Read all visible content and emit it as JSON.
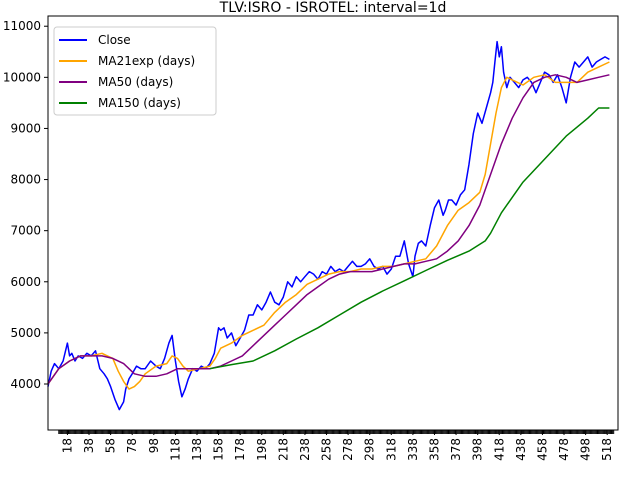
{
  "chart_data": {
    "type": "line",
    "title": "TLV:ISRO - ISROTEL: interval=1d",
    "xlabel": "",
    "ylabel": "",
    "xlim": [
      0,
      528
    ],
    "ylim": [
      3100,
      11200
    ],
    "x_tick_labels": [
      "18",
      "38",
      "58",
      "78",
      "98",
      "118",
      "138",
      "158",
      "178",
      "198",
      "218",
      "238",
      "258",
      "278",
      "298",
      "318",
      "338",
      "358",
      "378",
      "398",
      "418",
      "438",
      "458",
      "478",
      "498",
      "518"
    ],
    "y_tick_labels": [
      "4000",
      "5000",
      "6000",
      "7000",
      "8000",
      "9000",
      "10000",
      "11000"
    ],
    "legend_position": "upper left",
    "grid": false,
    "series": [
      {
        "name": "Close",
        "color": "#0000ff",
        "x": [
          0,
          3,
          6,
          10,
          14,
          18,
          20,
          22,
          25,
          28,
          32,
          36,
          40,
          44,
          48,
          52,
          55,
          58,
          62,
          66,
          70,
          72,
          75,
          78,
          82,
          86,
          90,
          95,
          100,
          104,
          108,
          112,
          115,
          118,
          121,
          124,
          127,
          130,
          134,
          138,
          142,
          146,
          150,
          154,
          158,
          160,
          163,
          166,
          170,
          174,
          178,
          182,
          186,
          190,
          194,
          198,
          202,
          206,
          210,
          214,
          218,
          222,
          226,
          230,
          234,
          238,
          242,
          246,
          250,
          254,
          258,
          262,
          266,
          270,
          274,
          278,
          282,
          286,
          290,
          294,
          298,
          302,
          306,
          310,
          314,
          318,
          322,
          326,
          330,
          334,
          338,
          340,
          343,
          346,
          350,
          354,
          358,
          362,
          366,
          368,
          371,
          374,
          378,
          382,
          386,
          390,
          394,
          398,
          402,
          406,
          410,
          412,
          414,
          416,
          418,
          420,
          422,
          425,
          428,
          432,
          436,
          440,
          444,
          448,
          452,
          456,
          460,
          464,
          468,
          472,
          476,
          480,
          484,
          488,
          492,
          496,
          500,
          504,
          508,
          512,
          516,
          520
        ],
        "y": [
          3950,
          4250,
          4400,
          4300,
          4450,
          4800,
          4550,
          4600,
          4450,
          4550,
          4500,
          4600,
          4550,
          4650,
          4300,
          4200,
          4100,
          3950,
          3700,
          3500,
          3650,
          3900,
          4100,
          4200,
          4350,
          4300,
          4300,
          4450,
          4350,
          4300,
          4500,
          4800,
          4950,
          4450,
          4050,
          3750,
          3900,
          4100,
          4300,
          4250,
          4350,
          4300,
          4400,
          4600,
          5100,
          5050,
          5100,
          4900,
          5000,
          4750,
          4900,
          5050,
          5350,
          5350,
          5550,
          5450,
          5600,
          5800,
          5600,
          5550,
          5700,
          6000,
          5900,
          6100,
          6000,
          6100,
          6200,
          6150,
          6050,
          6200,
          6150,
          6300,
          6200,
          6250,
          6200,
          6300,
          6400,
          6300,
          6300,
          6350,
          6450,
          6300,
          6250,
          6300,
          6150,
          6250,
          6500,
          6500,
          6800,
          6350,
          6100,
          6500,
          6750,
          6800,
          6700,
          7100,
          7450,
          7600,
          7300,
          7400,
          7600,
          7600,
          7500,
          7700,
          7800,
          8300,
          8900,
          9300,
          9100,
          9400,
          9700,
          9900,
          10300,
          10700,
          10400,
          10600,
          10100,
          9800,
          10000,
          9900,
          9800,
          9950,
          10000,
          9900,
          9700,
          9900,
          10100,
          10050,
          9900,
          10050,
          9800,
          9500,
          10000,
          10300,
          10200,
          10300,
          10400,
          10200,
          10300,
          10350,
          10400,
          10350
        ]
      },
      {
        "name": "MA21exp (days)",
        "color": "#ffa500",
        "x": [
          0,
          10,
          20,
          30,
          40,
          50,
          55,
          60,
          65,
          70,
          75,
          80,
          85,
          90,
          100,
          110,
          115,
          120,
          125,
          130,
          140,
          150,
          155,
          160,
          170,
          180,
          190,
          200,
          210,
          220,
          230,
          240,
          250,
          260,
          270,
          280,
          290,
          300,
          310,
          320,
          330,
          340,
          350,
          360,
          370,
          380,
          390,
          400,
          405,
          410,
          415,
          420,
          425,
          430,
          440,
          450,
          460,
          470,
          480,
          490,
          500,
          510,
          520
        ],
        "y": [
          4000,
          4300,
          4450,
          4550,
          4550,
          4600,
          4550,
          4500,
          4250,
          4050,
          3900,
          3950,
          4050,
          4200,
          4350,
          4400,
          4550,
          4500,
          4350,
          4250,
          4300,
          4350,
          4500,
          4700,
          4800,
          4950,
          5050,
          5150,
          5400,
          5600,
          5750,
          5950,
          6050,
          6150,
          6200,
          6200,
          6250,
          6250,
          6300,
          6300,
          6350,
          6400,
          6450,
          6700,
          7100,
          7400,
          7550,
          7750,
          8100,
          8700,
          9300,
          9800,
          10000,
          9950,
          9850,
          10000,
          10050,
          9900,
          9900,
          9900,
          10100,
          10200,
          10300
        ]
      },
      {
        "name": "MA50 (days)",
        "color": "#800080",
        "x": [
          0,
          10,
          20,
          30,
          40,
          50,
          60,
          70,
          80,
          90,
          100,
          110,
          120,
          130,
          140,
          150,
          160,
          170,
          180,
          190,
          200,
          210,
          220,
          230,
          240,
          250,
          260,
          270,
          280,
          290,
          300,
          310,
          320,
          330,
          340,
          350,
          360,
          370,
          380,
          390,
          400,
          410,
          420,
          430,
          440,
          450,
          460,
          470,
          480,
          490,
          500,
          510,
          520
        ],
        "y": [
          4000,
          4300,
          4450,
          4550,
          4550,
          4550,
          4500,
          4400,
          4200,
          4150,
          4150,
          4200,
          4300,
          4300,
          4300,
          4300,
          4350,
          4450,
          4550,
          4750,
          4950,
          5150,
          5350,
          5550,
          5750,
          5900,
          6050,
          6150,
          6200,
          6200,
          6200,
          6250,
          6300,
          6350,
          6350,
          6400,
          6450,
          6600,
          6800,
          7100,
          7500,
          8100,
          8700,
          9200,
          9600,
          9900,
          10000,
          10050,
          10000,
          9900,
          9950,
          10000,
          10050
        ]
      },
      {
        "name": "MA150 (days)",
        "color": "#008000",
        "x": [
          150,
          170,
          190,
          210,
          230,
          250,
          270,
          290,
          310,
          330,
          350,
          370,
          390,
          405,
          410,
          420,
          430,
          440,
          460,
          480,
          500,
          510,
          520
        ],
        "y": [
          4300,
          4380,
          4450,
          4650,
          4880,
          5100,
          5350,
          5600,
          5820,
          6020,
          6220,
          6420,
          6600,
          6800,
          6950,
          7350,
          7650,
          7950,
          8400,
          8850,
          9200,
          9400,
          9400
        ]
      }
    ]
  }
}
